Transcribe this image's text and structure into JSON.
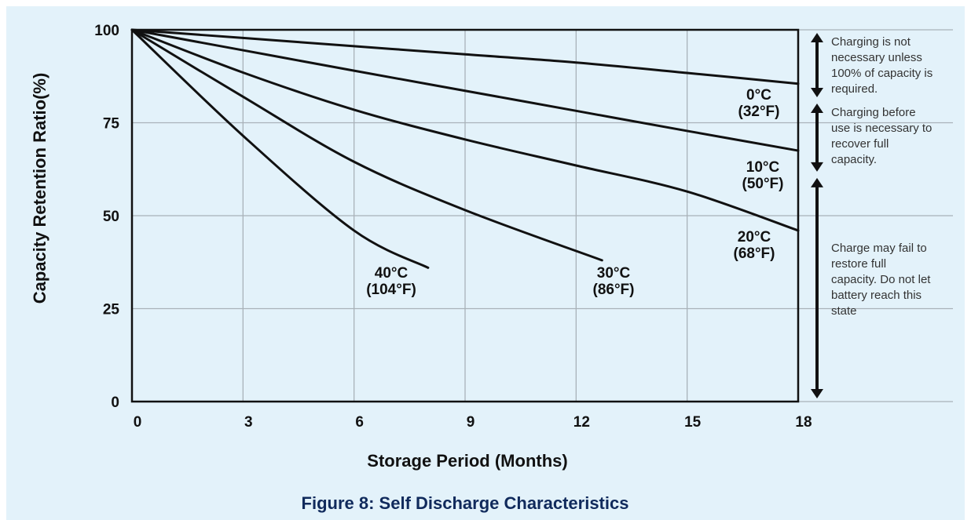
{
  "chart_data": {
    "type": "line",
    "xlabel": "Storage Period (Months)",
    "ylabel": "Capacity Retention Ratio(%)",
    "xlim": [
      0,
      18
    ],
    "ylim": [
      0,
      100
    ],
    "x_ticks": [
      "0",
      "3",
      "6",
      "9",
      "12",
      "15",
      "18"
    ],
    "y_ticks": [
      "0",
      "25",
      "50",
      "75",
      "100"
    ],
    "grid": true,
    "series": [
      {
        "name": "0°C (32°F)",
        "label_lines": [
          "0°C",
          "(32°F)"
        ],
        "x": [
          0,
          3,
          6,
          9,
          12,
          15,
          18
        ],
        "y": [
          100,
          97.8,
          95.6,
          93.4,
          91.2,
          88.4,
          85.5
        ]
      },
      {
        "name": "10°C (50°F)",
        "label_lines": [
          "10°C",
          "(50°F)"
        ],
        "x": [
          0,
          3,
          6,
          9,
          12,
          15,
          18
        ],
        "y": [
          100,
          94.5,
          89.0,
          83.6,
          78.2,
          72.8,
          67.5
        ]
      },
      {
        "name": "20°C (68°F)",
        "label_lines": [
          "20°C",
          "(68°F)"
        ],
        "x": [
          0,
          3,
          6,
          9,
          12,
          15,
          18
        ],
        "y": [
          100,
          88.5,
          78.5,
          70.5,
          63.5,
          56.5,
          46.0
        ]
      },
      {
        "name": "30°C (86°F)",
        "label_lines": [
          "30°C",
          "(86°F)"
        ],
        "x": [
          0,
          3,
          6,
          9,
          12.7
        ],
        "y": [
          100,
          82.0,
          64.5,
          51.5,
          38.0
        ]
      },
      {
        "name": "40°C (104°F)",
        "label_lines": [
          "40°C",
          "(104°F)"
        ],
        "x": [
          0,
          3,
          6,
          8.0
        ],
        "y": [
          100,
          71.5,
          46.0,
          36.0
        ]
      }
    ],
    "zones": [
      {
        "from": 100,
        "to": 81,
        "note_lines": [
          "Charging is not",
          "necessary unless",
          "100% of capacity is",
          "required."
        ]
      },
      {
        "from": 81,
        "to": 61,
        "note_lines": [
          "Charging before",
          "use is necessary to",
          "recover full",
          "capacity."
        ]
      },
      {
        "from": 61,
        "to": 0,
        "note_lines": [
          "Charge may fail to",
          "restore full",
          "capacity. Do not let",
          "battery reach this",
          "state"
        ]
      }
    ],
    "caption": "Figure 8: Self Discharge Characteristics"
  }
}
